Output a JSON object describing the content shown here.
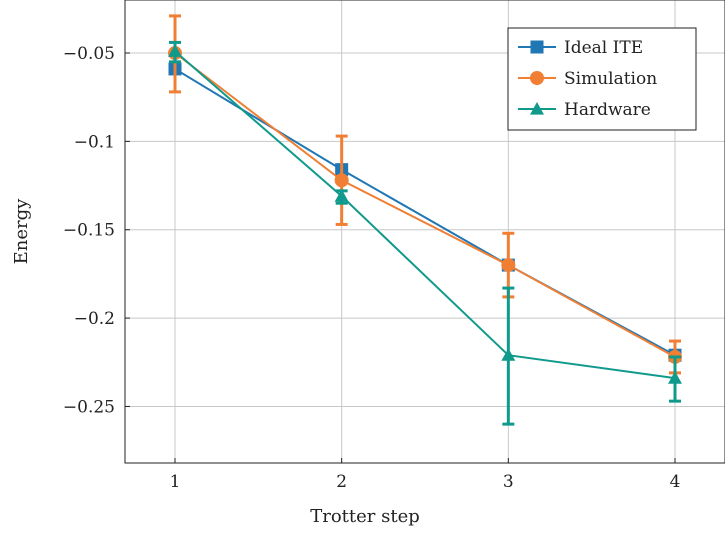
{
  "chart_data": {
    "type": "line",
    "xlabel": "Trotter step",
    "ylabel": "Energy",
    "x": [
      1,
      2,
      3,
      4
    ],
    "xticks": [
      "1",
      "2",
      "3",
      "4"
    ],
    "yticks": [
      -0.05,
      -0.1,
      -0.15,
      -0.2,
      -0.25
    ],
    "ytick_labels": [
      "−0.05",
      "−0.1",
      "−0.15",
      "−0.2",
      "−0.25"
    ],
    "xlim": [
      0.7,
      4.3
    ],
    "ylim": [
      -0.282,
      -0.02
    ],
    "grid": true,
    "legend": "top-right",
    "series": [
      {
        "name": "Ideal ITE",
        "color": "#1f77b4",
        "marker": "square",
        "values": [
          -0.059,
          -0.116,
          -0.17,
          -0.221
        ]
      },
      {
        "name": "Simulation",
        "color": "#f07f33",
        "marker": "circle",
        "values": [
          -0.05,
          -0.122,
          -0.17,
          -0.222
        ],
        "error_low": [
          -0.072,
          -0.147,
          -0.188,
          -0.231
        ],
        "error_high": [
          -0.029,
          -0.097,
          -0.152,
          -0.213
        ]
      },
      {
        "name": "Hardware",
        "color": "#109a8c",
        "marker": "triangle",
        "values": [
          -0.049,
          -0.131,
          -0.221,
          -0.234
        ],
        "error_low": [
          -0.055,
          -0.135,
          -0.26,
          -0.247
        ],
        "error_high": [
          -0.044,
          -0.128,
          -0.183,
          -0.222
        ]
      }
    ]
  }
}
